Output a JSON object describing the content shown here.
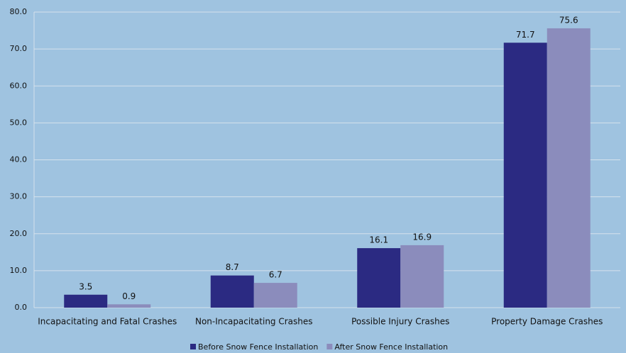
{
  "chart_data": {
    "type": "bar",
    "categories": [
      "Incapacitating and Fatal Crashes",
      "Non-Incapacitating Crashes",
      "Possible Injury Crashes",
      "Property Damage Crashes"
    ],
    "series": [
      {
        "name": "Before Snow Fence Installation",
        "color": "#2b2a82",
        "values": [
          3.5,
          8.7,
          16.1,
          71.7
        ]
      },
      {
        "name": "After Snow Fence Installation",
        "color": "#8b8cbc",
        "values": [
          0.9,
          6.7,
          16.9,
          75.6
        ]
      }
    ],
    "ylim": [
      0,
      80
    ],
    "yticks": [
      {
        "value": 0,
        "label": "0.0"
      },
      {
        "value": 10,
        "label": "10.0"
      },
      {
        "value": 20,
        "label": "20.0"
      },
      {
        "value": 30,
        "label": "30.0"
      },
      {
        "value": 40,
        "label": "40.0"
      },
      {
        "value": 50,
        "label": "50.0"
      },
      {
        "value": 60,
        "label": "60.0"
      },
      {
        "value": 70,
        "label": "70.0"
      },
      {
        "value": 80,
        "label": "80.0"
      }
    ],
    "grid": true,
    "legend": "bottom"
  }
}
